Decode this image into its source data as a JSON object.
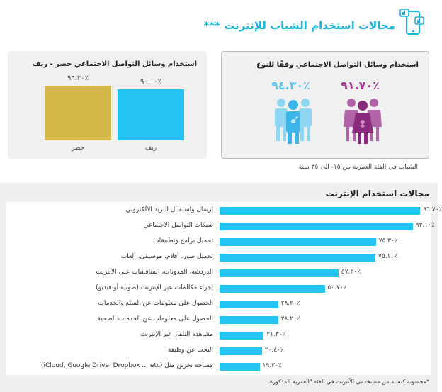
{
  "header": {
    "title": "مجالات استخدام الشباب للإنترنت ***",
    "icon": "phone-thumbs-up-icon"
  },
  "age_note": "الشباب في الفئة العمرية من ١٥- الى ٣٥ سنة",
  "footnote": "*محسوبة كنسبة من مستخدمي الأنترنت في الفئة \"العمرية المذكورة",
  "colors": {
    "accent": "#16b5dd",
    "bar": "#23c4f1",
    "urban": "#d4b84a",
    "female": "#a0378e",
    "male": "#5ec4ee"
  },
  "chart_data": [
    {
      "type": "bar",
      "title": "استخدام وسائل التواصل الاجتماعي حضر - ريف",
      "categories": [
        "ريف",
        "حضر"
      ],
      "values": [
        90.0,
        96.2
      ],
      "value_labels": [
        "٪٩٠.٠٠",
        "٪٩٦.٢٠"
      ],
      "ylim": [
        0,
        100
      ]
    },
    {
      "type": "bar",
      "title": "استخدام وسائل التواصل الاجتماعي وفقًا للنوع",
      "categories": [
        "female",
        "male"
      ],
      "icons": [
        "female-group-icon",
        "male-group-icon"
      ],
      "values": [
        91.7,
        94.3
      ],
      "value_labels": [
        "٪٩١.٧٠",
        "٪٩٤.٣٠"
      ]
    },
    {
      "type": "bar",
      "title": "مجالات استخدام الإنترنت",
      "orientation": "horizontal",
      "xlim": [
        0,
        100
      ],
      "categories": [
        "إرسال واستقبال البريد الالكتروني",
        "شبكات التواصل الاجتماعي",
        "تحميل برامج وتطبيقات",
        "تحميل صور، أفلام، موسيقى، ألعاب",
        "الدردشة، المدونات، المناقشات على الانترنت",
        "إجراء مكالمات عبر الإنترنت (صوتية أو فيديو)",
        "الحصول على معلومات عن السلع والخدمات",
        "الحصول على معلومات عن الخدمات الصحية",
        "مشاهدة التلفاز عبر الإنترنت",
        "البحث عن وظيفة",
        "مساحة تخزين مثل (iCloud, Google Drive, Dropbox ... etc)"
      ],
      "values": [
        96.7,
        93.1,
        75.3,
        75.1,
        57.3,
        50.7,
        28.2,
        28.2,
        21.3,
        20.4,
        19.3
      ],
      "value_labels": [
        "٪٩٦.٧٠",
        "٪٩٣.١٠",
        "٪٧٥.٣٠",
        "٪٧٥.١٠",
        "٪٥٧.٣٠",
        "٪٥٠.٧٠",
        "٪٢٨.٢٠",
        "٪٢٨.٢٠",
        "٪٢١.٣٠",
        "٪٢٠.٤٠",
        "٪١٩.٣٠"
      ]
    }
  ]
}
